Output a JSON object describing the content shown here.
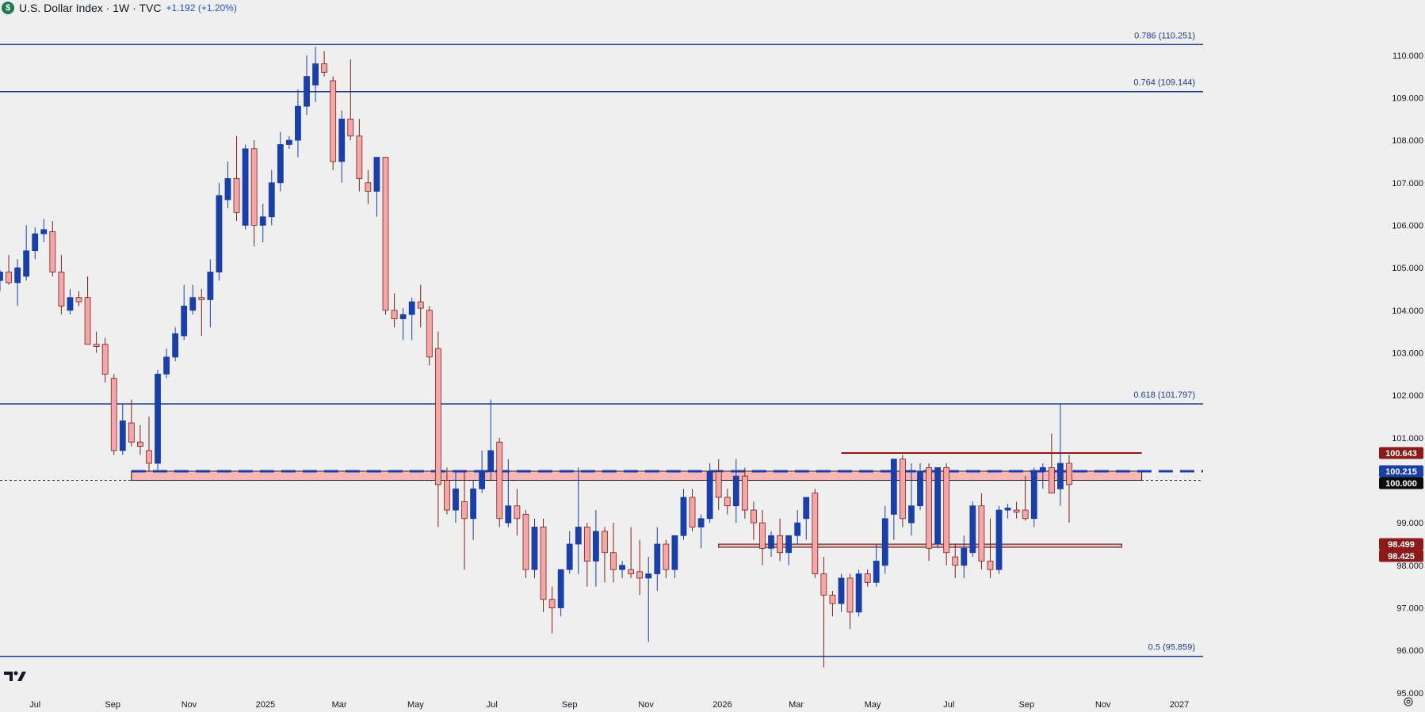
{
  "header": {
    "title": "U.S. Dollar Index · 1W · TVC",
    "change": "+1.192 (+1.20%)",
    "badge": "$"
  },
  "colors": {
    "background": "#efefef",
    "up_candle": "#1a3fa6",
    "down_candle": "#f4a7a7",
    "down_candle_border": "#7a1f1f",
    "fib_line": "#1a3f8f",
    "zone_fill": "#f5b7b7",
    "zone_border": "#3a1010",
    "tag_dark_red": "#8b1a1a",
    "tag_blue": "#1a3fa6",
    "tag_black": "#0b0b0b"
  },
  "icons": {
    "logo": "tradingview-logo-icon",
    "settings": "settings-gear-icon"
  },
  "chart_data": {
    "type": "candlestick",
    "title": "U.S. Dollar Index · 1W · TVC",
    "x_start": "2024-06-03",
    "x_end": "2027-01-20",
    "ylim": [
      94.55,
      111.3
    ],
    "x_tick_labels": [
      {
        "label": "Jul",
        "date": "2024-07-01"
      },
      {
        "label": "Sep",
        "date": "2024-09-01"
      },
      {
        "label": "Nov",
        "date": "2024-11-01"
      },
      {
        "label": "2025",
        "date": "2025-01-01"
      },
      {
        "label": "Mar",
        "date": "2025-03-01"
      },
      {
        "label": "May",
        "date": "2025-05-01"
      },
      {
        "label": "Jul",
        "date": "2025-07-01"
      },
      {
        "label": "Sep",
        "date": "2025-09-01"
      },
      {
        "label": "Nov",
        "date": "2025-11-01"
      },
      {
        "label": "2026",
        "date": "2026-01-01"
      },
      {
        "label": "Mar",
        "date": "2026-03-01"
      },
      {
        "label": "May",
        "date": "2026-05-01"
      },
      {
        "label": "Jul",
        "date": "2026-07-01"
      },
      {
        "label": "Sep",
        "date": "2026-09-01"
      },
      {
        "label": "Nov",
        "date": "2026-11-01"
      },
      {
        "label": "2027",
        "date": "2027-01-01"
      }
    ],
    "y_tick_labels": [
      "110.000",
      "109.000",
      "108.000",
      "107.000",
      "106.000",
      "105.000",
      "104.000",
      "103.000",
      "102.000",
      "101.000",
      "100.000",
      "99.000",
      "98.000",
      "97.000",
      "96.000",
      "95.000"
    ],
    "y_tick_values": [
      110,
      109,
      108,
      107,
      106,
      105,
      104,
      103,
      102,
      101,
      100,
      99,
      98,
      97,
      96,
      95
    ],
    "fib_levels": [
      {
        "label": "0.786 (110.251)",
        "value": 110.251
      },
      {
        "label": "0.764 (109.144)",
        "value": 109.144
      },
      {
        "label": "0.618 (101.797)",
        "value": 101.797
      },
      {
        "label": "0.5 (95.859)",
        "value": 95.859
      }
    ],
    "zones": [
      {
        "name": "100 zone",
        "low": 100.0,
        "high": 100.215,
        "start": "2024-09-16",
        "end": "2026-12-02"
      },
      {
        "name": "98.4 zone",
        "low": 98.425,
        "high": 98.499,
        "start": "2025-12-29",
        "end": "2026-11-16"
      }
    ],
    "horizontal_lines": [
      {
        "name": "100.643 resistance",
        "value": 100.643,
        "start": "2026-04-06",
        "end": "2026-12-02",
        "style": "solid"
      },
      {
        "name": "100.215 dashed",
        "value": 100.215,
        "start": "2024-09-16",
        "end": "2027-01-20",
        "style": "dashed"
      },
      {
        "name": "100.000 dotted",
        "value": 100.0,
        "start": "2024-06-03",
        "end": "2027-01-20",
        "style": "dotted"
      }
    ],
    "price_tags": [
      {
        "label": "100.643",
        "value": 100.643,
        "kind": "dark-red"
      },
      {
        "label": "100.215",
        "value": 100.215,
        "kind": "blue"
      },
      {
        "label": "100.000",
        "value": 100.0,
        "kind": "black"
      },
      {
        "label": "98.499",
        "value": 98.499,
        "kind": "dark-red"
      },
      {
        "label": "98.425",
        "value": 98.425,
        "kind": "dark-red"
      }
    ],
    "candles": [
      {
        "d": "2024-06-03",
        "o": 104.7,
        "h": 104.95,
        "l": 104.45,
        "c": 104.9
      },
      {
        "d": "2024-06-10",
        "o": 104.9,
        "h": 105.3,
        "l": 104.6,
        "c": 104.65
      },
      {
        "d": "2024-06-17",
        "o": 104.65,
        "h": 105.2,
        "l": 104.1,
        "c": 105.0
      },
      {
        "d": "2024-06-24",
        "o": 104.8,
        "h": 106.0,
        "l": 104.7,
        "c": 105.4
      },
      {
        "d": "2024-07-01",
        "o": 105.4,
        "h": 105.95,
        "l": 105.2,
        "c": 105.8
      },
      {
        "d": "2024-07-08",
        "o": 105.8,
        "h": 106.15,
        "l": 105.6,
        "c": 105.9
      },
      {
        "d": "2024-07-15",
        "o": 105.85,
        "h": 106.1,
        "l": 104.8,
        "c": 104.9
      },
      {
        "d": "2024-07-22",
        "o": 104.9,
        "h": 105.3,
        "l": 103.9,
        "c": 104.1
      },
      {
        "d": "2024-07-29",
        "o": 104.0,
        "h": 104.5,
        "l": 103.9,
        "c": 104.3
      },
      {
        "d": "2024-08-05",
        "o": 104.3,
        "h": 104.45,
        "l": 104.1,
        "c": 104.2
      },
      {
        "d": "2024-08-12",
        "o": 104.3,
        "h": 104.8,
        "l": 103.2,
        "c": 103.2
      },
      {
        "d": "2024-08-19",
        "o": 103.2,
        "h": 103.5,
        "l": 103.0,
        "c": 103.15
      },
      {
        "d": "2024-08-26",
        "o": 103.2,
        "h": 103.35,
        "l": 102.3,
        "c": 102.5
      },
      {
        "d": "2024-09-02",
        "o": 102.4,
        "h": 102.5,
        "l": 100.6,
        "c": 100.7
      },
      {
        "d": "2024-09-09",
        "o": 100.7,
        "h": 101.8,
        "l": 100.6,
        "c": 101.4
      },
      {
        "d": "2024-09-16",
        "o": 101.35,
        "h": 101.9,
        "l": 100.8,
        "c": 100.9
      },
      {
        "d": "2024-09-23",
        "o": 100.9,
        "h": 101.3,
        "l": 100.6,
        "c": 100.8
      },
      {
        "d": "2024-09-30",
        "o": 100.7,
        "h": 101.5,
        "l": 100.2,
        "c": 100.4
      },
      {
        "d": "2024-10-07",
        "o": 100.4,
        "h": 102.6,
        "l": 100.25,
        "c": 102.5
      },
      {
        "d": "2024-10-14",
        "o": 102.5,
        "h": 103.1,
        "l": 102.4,
        "c": 102.9
      },
      {
        "d": "2024-10-21",
        "o": 102.9,
        "h": 103.6,
        "l": 102.8,
        "c": 103.45
      },
      {
        "d": "2024-10-28",
        "o": 103.4,
        "h": 104.6,
        "l": 103.3,
        "c": 104.1
      },
      {
        "d": "2024-11-04",
        "o": 104.0,
        "h": 104.6,
        "l": 103.9,
        "c": 104.3
      },
      {
        "d": "2024-11-11",
        "o": 104.3,
        "h": 104.5,
        "l": 103.4,
        "c": 104.25
      },
      {
        "d": "2024-11-18",
        "o": 104.25,
        "h": 105.2,
        "l": 103.6,
        "c": 104.9
      },
      {
        "d": "2024-11-25",
        "o": 104.9,
        "h": 107.0,
        "l": 104.7,
        "c": 106.7
      },
      {
        "d": "2024-12-02",
        "o": 106.6,
        "h": 107.5,
        "l": 106.4,
        "c": 107.1
      },
      {
        "d": "2024-12-09",
        "o": 107.1,
        "h": 108.1,
        "l": 106.1,
        "c": 106.3
      },
      {
        "d": "2024-12-16",
        "o": 106.0,
        "h": 107.9,
        "l": 105.9,
        "c": 107.8
      },
      {
        "d": "2024-12-23",
        "o": 107.8,
        "h": 108.0,
        "l": 105.5,
        "c": 106.0
      },
      {
        "d": "2024-12-30",
        "o": 106.0,
        "h": 106.5,
        "l": 105.6,
        "c": 106.2
      },
      {
        "d": "2025-01-06",
        "o": 106.2,
        "h": 107.3,
        "l": 106.0,
        "c": 107.0
      },
      {
        "d": "2025-01-13",
        "o": 107.0,
        "h": 108.2,
        "l": 106.8,
        "c": 107.9
      },
      {
        "d": "2025-01-20",
        "o": 107.9,
        "h": 108.1,
        "l": 107.8,
        "c": 108.0
      },
      {
        "d": "2025-01-27",
        "o": 108.0,
        "h": 109.2,
        "l": 107.6,
        "c": 108.8
      },
      {
        "d": "2025-02-03",
        "o": 108.8,
        "h": 110.0,
        "l": 108.6,
        "c": 109.5
      },
      {
        "d": "2025-02-10",
        "o": 109.3,
        "h": 110.2,
        "l": 108.9,
        "c": 109.8
      },
      {
        "d": "2025-02-17",
        "o": 109.8,
        "h": 110.1,
        "l": 109.5,
        "c": 109.6
      },
      {
        "d": "2025-02-24",
        "o": 109.4,
        "h": 109.5,
        "l": 107.3,
        "c": 107.5
      },
      {
        "d": "2025-03-03",
        "o": 107.5,
        "h": 108.7,
        "l": 107.0,
        "c": 108.5
      },
      {
        "d": "2025-03-10",
        "o": 108.5,
        "h": 109.9,
        "l": 108.0,
        "c": 108.1
      },
      {
        "d": "2025-03-17",
        "o": 108.1,
        "h": 108.5,
        "l": 106.8,
        "c": 107.1
      },
      {
        "d": "2025-03-24",
        "o": 107.0,
        "h": 107.3,
        "l": 106.5,
        "c": 106.8
      },
      {
        "d": "2025-03-31",
        "o": 106.8,
        "h": 107.6,
        "l": 106.2,
        "c": 107.6
      },
      {
        "d": "2025-04-07",
        "o": 107.6,
        "h": 107.6,
        "l": 103.9,
        "c": 104.0
      },
      {
        "d": "2025-04-14",
        "o": 104.0,
        "h": 104.4,
        "l": 103.6,
        "c": 103.8
      },
      {
        "d": "2025-04-21",
        "o": 103.8,
        "h": 104.05,
        "l": 103.3,
        "c": 103.9
      },
      {
        "d": "2025-04-28",
        "o": 103.9,
        "h": 104.3,
        "l": 103.3,
        "c": 104.2
      },
      {
        "d": "2025-05-05",
        "o": 104.2,
        "h": 104.6,
        "l": 103.6,
        "c": 104.05
      },
      {
        "d": "2025-05-12",
        "o": 104.0,
        "h": 104.1,
        "l": 102.7,
        "c": 102.9
      },
      {
        "d": "2025-05-19",
        "o": 103.1,
        "h": 103.5,
        "l": 98.9,
        "c": 99.9
      },
      {
        "d": "2025-05-26",
        "o": 100.0,
        "h": 100.3,
        "l": 99.2,
        "c": 99.3
      },
      {
        "d": "2025-06-02",
        "o": 99.3,
        "h": 100.2,
        "l": 99.0,
        "c": 99.8
      },
      {
        "d": "2025-06-09",
        "o": 99.5,
        "h": 100.2,
        "l": 97.9,
        "c": 99.1
      },
      {
        "d": "2025-06-16",
        "o": 99.1,
        "h": 100.0,
        "l": 98.6,
        "c": 99.8
      },
      {
        "d": "2025-06-23",
        "o": 99.8,
        "h": 100.7,
        "l": 99.7,
        "c": 100.2
      },
      {
        "d": "2025-06-30",
        "o": 100.2,
        "h": 101.9,
        "l": 100.0,
        "c": 100.7
      },
      {
        "d": "2025-07-07",
        "o": 100.9,
        "h": 101.0,
        "l": 98.9,
        "c": 99.1
      },
      {
        "d": "2025-07-14",
        "o": 99.0,
        "h": 100.5,
        "l": 98.9,
        "c": 99.4
      },
      {
        "d": "2025-07-21",
        "o": 99.4,
        "h": 99.8,
        "l": 98.7,
        "c": 99.1
      },
      {
        "d": "2025-07-28",
        "o": 99.2,
        "h": 99.3,
        "l": 97.7,
        "c": 97.9
      },
      {
        "d": "2025-08-04",
        "o": 97.9,
        "h": 99.1,
        "l": 97.7,
        "c": 98.9
      },
      {
        "d": "2025-08-11",
        "o": 98.9,
        "h": 99.1,
        "l": 96.9,
        "c": 97.2
      },
      {
        "d": "2025-08-18",
        "o": 97.2,
        "h": 97.5,
        "l": 96.4,
        "c": 97.0
      },
      {
        "d": "2025-08-25",
        "o": 97.0,
        "h": 97.9,
        "l": 96.8,
        "c": 97.9
      },
      {
        "d": "2025-09-01",
        "o": 97.9,
        "h": 98.8,
        "l": 97.8,
        "c": 98.5
      },
      {
        "d": "2025-09-08",
        "o": 98.5,
        "h": 100.3,
        "l": 97.8,
        "c": 98.9
      },
      {
        "d": "2025-09-15",
        "o": 98.9,
        "h": 99.0,
        "l": 97.5,
        "c": 98.1
      },
      {
        "d": "2025-09-22",
        "o": 98.1,
        "h": 99.3,
        "l": 97.5,
        "c": 98.8
      },
      {
        "d": "2025-09-29",
        "o": 98.8,
        "h": 98.9,
        "l": 97.6,
        "c": 98.3
      },
      {
        "d": "2025-10-06",
        "o": 98.3,
        "h": 99.0,
        "l": 97.6,
        "c": 97.9
      },
      {
        "d": "2025-10-13",
        "o": 97.9,
        "h": 98.1,
        "l": 97.7,
        "c": 98.0
      },
      {
        "d": "2025-10-20",
        "o": 97.9,
        "h": 98.9,
        "l": 97.7,
        "c": 97.8
      },
      {
        "d": "2025-10-27",
        "o": 97.85,
        "h": 98.6,
        "l": 97.3,
        "c": 97.7
      },
      {
        "d": "2025-11-03",
        "o": 97.7,
        "h": 98.2,
        "l": 96.2,
        "c": 97.8
      },
      {
        "d": "2025-11-10",
        "o": 97.8,
        "h": 98.9,
        "l": 97.4,
        "c": 98.5
      },
      {
        "d": "2025-11-17",
        "o": 98.5,
        "h": 98.6,
        "l": 97.7,
        "c": 97.9
      },
      {
        "d": "2025-11-24",
        "o": 97.9,
        "h": 98.7,
        "l": 97.7,
        "c": 98.7
      },
      {
        "d": "2025-12-01",
        "o": 98.7,
        "h": 99.8,
        "l": 98.6,
        "c": 99.6
      },
      {
        "d": "2025-12-08",
        "o": 99.6,
        "h": 99.8,
        "l": 98.8,
        "c": 98.9
      },
      {
        "d": "2025-12-15",
        "o": 98.9,
        "h": 99.2,
        "l": 98.4,
        "c": 99.1
      },
      {
        "d": "2025-12-22",
        "o": 99.1,
        "h": 100.4,
        "l": 99.0,
        "c": 100.2
      },
      {
        "d": "2025-12-29",
        "o": 100.2,
        "h": 100.5,
        "l": 99.3,
        "c": 99.6
      },
      {
        "d": "2026-01-05",
        "o": 99.6,
        "h": 99.8,
        "l": 99.2,
        "c": 99.4
      },
      {
        "d": "2026-01-12",
        "o": 99.4,
        "h": 100.5,
        "l": 99.0,
        "c": 100.1
      },
      {
        "d": "2026-01-19",
        "o": 100.1,
        "h": 100.3,
        "l": 99.1,
        "c": 99.3
      },
      {
        "d": "2026-01-26",
        "o": 99.3,
        "h": 99.5,
        "l": 98.6,
        "c": 99.0
      },
      {
        "d": "2026-02-02",
        "o": 99.0,
        "h": 99.3,
        "l": 98.0,
        "c": 98.4
      },
      {
        "d": "2026-02-09",
        "o": 98.4,
        "h": 98.8,
        "l": 98.2,
        "c": 98.7
      },
      {
        "d": "2026-02-16",
        "o": 98.7,
        "h": 99.1,
        "l": 98.1,
        "c": 98.3
      },
      {
        "d": "2026-02-23",
        "o": 98.3,
        "h": 98.7,
        "l": 98.0,
        "c": 98.7
      },
      {
        "d": "2026-03-02",
        "o": 98.7,
        "h": 99.3,
        "l": 98.5,
        "c": 99.0
      },
      {
        "d": "2026-03-09",
        "o": 99.1,
        "h": 99.5,
        "l": 98.6,
        "c": 99.6
      },
      {
        "d": "2026-03-16",
        "o": 99.7,
        "h": 99.8,
        "l": 97.7,
        "c": 97.8
      },
      {
        "d": "2026-03-23",
        "o": 97.8,
        "h": 98.2,
        "l": 95.6,
        "c": 97.3
      },
      {
        "d": "2026-03-30",
        "o": 97.3,
        "h": 97.4,
        "l": 96.8,
        "c": 97.1
      },
      {
        "d": "2026-04-06",
        "o": 97.1,
        "h": 97.8,
        "l": 96.9,
        "c": 97.7
      },
      {
        "d": "2026-04-13",
        "o": 97.7,
        "h": 97.8,
        "l": 96.5,
        "c": 96.9
      },
      {
        "d": "2026-04-20",
        "o": 96.9,
        "h": 97.9,
        "l": 96.8,
        "c": 97.8
      },
      {
        "d": "2026-04-27",
        "o": 97.8,
        "h": 97.9,
        "l": 97.5,
        "c": 97.6
      },
      {
        "d": "2026-05-04",
        "o": 97.6,
        "h": 98.5,
        "l": 97.5,
        "c": 98.1
      },
      {
        "d": "2026-05-11",
        "o": 98.0,
        "h": 99.4,
        "l": 97.8,
        "c": 99.1
      },
      {
        "d": "2026-05-18",
        "o": 99.2,
        "h": 100.5,
        "l": 98.6,
        "c": 100.5
      },
      {
        "d": "2026-05-25",
        "o": 100.5,
        "h": 100.6,
        "l": 98.9,
        "c": 99.1
      },
      {
        "d": "2026-06-01",
        "o": 99.0,
        "h": 100.4,
        "l": 98.7,
        "c": 99.4
      },
      {
        "d": "2026-06-08",
        "o": 99.4,
        "h": 100.4,
        "l": 99.3,
        "c": 100.2
      },
      {
        "d": "2026-06-15",
        "o": 100.3,
        "h": 100.4,
        "l": 98.1,
        "c": 98.4
      },
      {
        "d": "2026-06-22",
        "o": 98.5,
        "h": 100.2,
        "l": 98.4,
        "c": 100.3
      },
      {
        "d": "2026-06-29",
        "o": 100.3,
        "h": 100.4,
        "l": 98.0,
        "c": 98.3
      },
      {
        "d": "2026-07-06",
        "o": 98.2,
        "h": 98.5,
        "l": 97.7,
        "c": 98.0
      },
      {
        "d": "2026-07-13",
        "o": 98.0,
        "h": 98.7,
        "l": 97.7,
        "c": 98.4
      },
      {
        "d": "2026-07-20",
        "o": 98.3,
        "h": 99.5,
        "l": 98.2,
        "c": 99.4
      },
      {
        "d": "2026-07-27",
        "o": 99.4,
        "h": 99.7,
        "l": 97.9,
        "c": 98.1
      },
      {
        "d": "2026-08-03",
        "o": 98.1,
        "h": 99.1,
        "l": 97.7,
        "c": 97.9
      },
      {
        "d": "2026-08-10",
        "o": 97.9,
        "h": 99.4,
        "l": 97.8,
        "c": 99.3
      },
      {
        "d": "2026-08-17",
        "o": 99.3,
        "h": 99.45,
        "l": 99.1,
        "c": 99.35
      },
      {
        "d": "2026-08-24",
        "o": 99.3,
        "h": 99.5,
        "l": 99.1,
        "c": 99.25
      },
      {
        "d": "2026-08-31",
        "o": 99.3,
        "h": 100.1,
        "l": 99.05,
        "c": 99.1
      },
      {
        "d": "2026-09-07",
        "o": 99.1,
        "h": 100.3,
        "l": 98.9,
        "c": 100.2
      },
      {
        "d": "2026-09-14",
        "o": 100.2,
        "h": 100.4,
        "l": 99.8,
        "c": 100.3
      },
      {
        "d": "2026-09-21",
        "o": 100.3,
        "h": 101.1,
        "l": 99.8,
        "c": 99.7
      },
      {
        "d": "2026-09-28",
        "o": 99.8,
        "h": 101.8,
        "l": 99.4,
        "c": 100.4
      },
      {
        "d": "2026-10-05",
        "o": 100.4,
        "h": 100.6,
        "l": 99.0,
        "c": 99.9
      }
    ]
  }
}
